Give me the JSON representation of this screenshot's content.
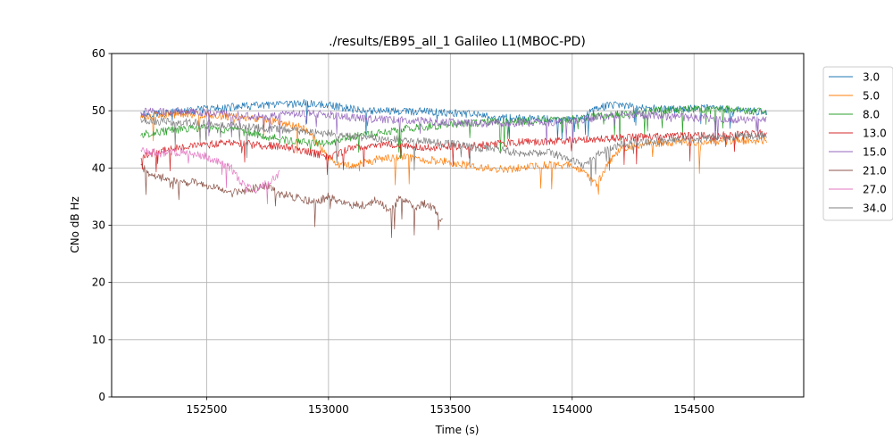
{
  "chart_data": {
    "type": "line",
    "title": "./results/EB95_all_1 Galileo L1(MBOC-PD)",
    "xlabel": "Time (s)",
    "ylabel": "CNo dB Hz",
    "xlim": [
      152110,
      154950
    ],
    "ylim": [
      0,
      60
    ],
    "xticks": [
      152500,
      153000,
      153500,
      154000,
      154500
    ],
    "yticks": [
      0,
      10,
      20,
      30,
      40,
      50,
      60
    ],
    "grid": true,
    "legend_position": "upper right outside",
    "series": [
      {
        "name": "3.0",
        "color": "#1f77b4",
        "x_range": [
          152230,
          154800
        ],
        "points": [
          [
            152230,
            49.4
          ],
          [
            152400,
            49.8
          ],
          [
            152500,
            50.3
          ],
          [
            152600,
            50.6
          ],
          [
            152700,
            50.9
          ],
          [
            152800,
            51.0
          ],
          [
            152900,
            51.3
          ],
          [
            153000,
            51.0
          ],
          [
            153100,
            50.3
          ],
          [
            153200,
            50.0
          ],
          [
            153300,
            49.9
          ],
          [
            153400,
            49.8
          ],
          [
            153500,
            49.6
          ],
          [
            153600,
            49.3
          ],
          [
            153700,
            48.8
          ],
          [
            153800,
            48.6
          ],
          [
            153900,
            48.5
          ],
          [
            154000,
            48.4
          ],
          [
            154050,
            48.9
          ],
          [
            154100,
            50.7
          ],
          [
            154200,
            51.0
          ],
          [
            154300,
            50.5
          ],
          [
            154400,
            50.2
          ],
          [
            154500,
            50.4
          ],
          [
            154600,
            50.5
          ],
          [
            154700,
            50.0
          ],
          [
            154800,
            49.8
          ]
        ]
      },
      {
        "name": "5.0",
        "color": "#ff7f0e",
        "x_range": [
          152230,
          154800
        ],
        "points": [
          [
            152230,
            49.0
          ],
          [
            152400,
            49.5
          ],
          [
            152500,
            49.3
          ],
          [
            152600,
            49.0
          ],
          [
            152700,
            48.5
          ],
          [
            152800,
            48.0
          ],
          [
            152900,
            47.0
          ],
          [
            153000,
            42.0
          ],
          [
            153050,
            40.5
          ],
          [
            153100,
            40.5
          ],
          [
            153200,
            41.5
          ],
          [
            153300,
            42.0
          ],
          [
            153400,
            41.5
          ],
          [
            153500,
            41.0
          ],
          [
            153600,
            40.2
          ],
          [
            153700,
            39.8
          ],
          [
            153800,
            40.0
          ],
          [
            153900,
            40.5
          ],
          [
            154000,
            40.5
          ],
          [
            154050,
            39.5
          ],
          [
            154100,
            37.0
          ],
          [
            154150,
            41.0
          ],
          [
            154200,
            43.5
          ],
          [
            154300,
            44.2
          ],
          [
            154400,
            44.5
          ],
          [
            154500,
            44.5
          ],
          [
            154600,
            44.7
          ],
          [
            154700,
            44.8
          ],
          [
            154800,
            44.8
          ]
        ]
      },
      {
        "name": "8.0",
        "color": "#2ca02c",
        "x_range": [
          152230,
          154800
        ],
        "points": [
          [
            152230,
            45.8
          ],
          [
            152300,
            46.3
          ],
          [
            152400,
            46.8
          ],
          [
            152500,
            47.0
          ],
          [
            152600,
            46.5
          ],
          [
            152700,
            46.0
          ],
          [
            152800,
            45.0
          ],
          [
            152900,
            44.5
          ],
          [
            153000,
            44.2
          ],
          [
            153100,
            45.5
          ],
          [
            153200,
            46.0
          ],
          [
            153300,
            46.8
          ],
          [
            153400,
            47.2
          ],
          [
            153500,
            47.6
          ],
          [
            153600,
            47.9
          ],
          [
            153700,
            48.1
          ],
          [
            153800,
            48.2
          ],
          [
            153900,
            48.3
          ],
          [
            154000,
            48.5
          ],
          [
            154100,
            49.0
          ],
          [
            154200,
            49.4
          ],
          [
            154300,
            49.8
          ],
          [
            154400,
            50.1
          ],
          [
            154500,
            50.3
          ],
          [
            154600,
            50.4
          ],
          [
            154700,
            50.0
          ],
          [
            154800,
            49.8
          ]
        ]
      },
      {
        "name": "13.0",
        "color": "#d62728",
        "x_range": [
          152230,
          154800
        ],
        "points": [
          [
            152230,
            41.8
          ],
          [
            152300,
            43.0
          ],
          [
            152400,
            43.8
          ],
          [
            152500,
            44.0
          ],
          [
            152600,
            44.5
          ],
          [
            152700,
            44.0
          ],
          [
            152800,
            43.8
          ],
          [
            152900,
            43.0
          ],
          [
            153000,
            42.0
          ],
          [
            153100,
            43.5
          ],
          [
            153200,
            44.2
          ],
          [
            153300,
            44.0
          ],
          [
            153400,
            43.6
          ],
          [
            153500,
            43.8
          ],
          [
            153600,
            44.0
          ],
          [
            153700,
            44.2
          ],
          [
            153800,
            44.5
          ],
          [
            153900,
            44.6
          ],
          [
            154000,
            44.8
          ],
          [
            154100,
            45.1
          ],
          [
            154200,
            45.3
          ],
          [
            154300,
            45.4
          ],
          [
            154400,
            45.5
          ],
          [
            154500,
            45.6
          ],
          [
            154600,
            45.6
          ],
          [
            154700,
            45.9
          ],
          [
            154800,
            46.1
          ]
        ]
      },
      {
        "name": "15.0",
        "color": "#9467bd",
        "x_range": [
          152230,
          154800
        ],
        "points": [
          [
            152230,
            49.8
          ],
          [
            152400,
            49.9
          ],
          [
            152500,
            49.7
          ],
          [
            152600,
            49.3
          ],
          [
            152700,
            49.0
          ],
          [
            152800,
            49.3
          ],
          [
            152900,
            49.5
          ],
          [
            153000,
            49.3
          ],
          [
            153100,
            48.8
          ],
          [
            153200,
            48.5
          ],
          [
            153300,
            48.3
          ],
          [
            153400,
            48.2
          ],
          [
            153500,
            48.0
          ],
          [
            153600,
            47.8
          ],
          [
            153700,
            47.8
          ],
          [
            153800,
            47.9
          ],
          [
            153900,
            48.0
          ],
          [
            154000,
            48.3
          ],
          [
            154100,
            48.8
          ],
          [
            154200,
            49.2
          ],
          [
            154300,
            49.2
          ],
          [
            154400,
            49.0
          ],
          [
            154500,
            48.8
          ],
          [
            154600,
            48.6
          ],
          [
            154700,
            48.4
          ],
          [
            154800,
            48.3
          ]
        ]
      },
      {
        "name": "21.0",
        "color": "#8c564b",
        "x_range": [
          152230,
          153470
        ],
        "points": [
          [
            152230,
            40.5
          ],
          [
            152260,
            39.0
          ],
          [
            152300,
            38.5
          ],
          [
            152350,
            38.0
          ],
          [
            152400,
            37.5
          ],
          [
            152450,
            37.5
          ],
          [
            152500,
            37.0
          ],
          [
            152550,
            36.5
          ],
          [
            152600,
            35.5
          ],
          [
            152650,
            36.0
          ],
          [
            152700,
            36.5
          ],
          [
            152750,
            36.8
          ],
          [
            152800,
            35.5
          ],
          [
            152850,
            35.0
          ],
          [
            152900,
            34.5
          ],
          [
            152950,
            34.0
          ],
          [
            153000,
            35.0
          ],
          [
            153050,
            34.0
          ],
          [
            153100,
            33.5
          ],
          [
            153150,
            33.5
          ],
          [
            153200,
            34.5
          ],
          [
            153250,
            32.5
          ],
          [
            153300,
            35.0
          ],
          [
            153350,
            33.0
          ],
          [
            153400,
            33.8
          ],
          [
            153440,
            32.5
          ],
          [
            153470,
            30.3
          ]
        ]
      },
      {
        "name": "27.0",
        "color": "#e377c2",
        "x_range": [
          152230,
          152800
        ],
        "points": [
          [
            152230,
            43.0
          ],
          [
            152300,
            42.5
          ],
          [
            152400,
            42.8
          ],
          [
            152500,
            42.0
          ],
          [
            152550,
            41.0
          ],
          [
            152600,
            40.0
          ],
          [
            152650,
            37.0
          ],
          [
            152700,
            36.0
          ],
          [
            152750,
            37.5
          ],
          [
            152800,
            39.0
          ]
        ]
      },
      {
        "name": "34.0",
        "color": "#7f7f7f",
        "x_range": [
          152230,
          154800
        ],
        "points": [
          [
            152230,
            48.5
          ],
          [
            152300,
            48.2
          ],
          [
            152400,
            48.0
          ],
          [
            152500,
            47.8
          ],
          [
            152600,
            47.5
          ],
          [
            152700,
            47.0
          ],
          [
            152800,
            46.8
          ],
          [
            152900,
            46.3
          ],
          [
            153000,
            46.0
          ],
          [
            153100,
            45.5
          ],
          [
            153200,
            45.2
          ],
          [
            153300,
            45.0
          ],
          [
            153400,
            44.6
          ],
          [
            153500,
            44.3
          ],
          [
            153600,
            43.6
          ],
          [
            153700,
            43.2
          ],
          [
            153800,
            42.5
          ],
          [
            153900,
            42.8
          ],
          [
            154000,
            41.5
          ],
          [
            154050,
            40.5
          ],
          [
            154100,
            42.5
          ],
          [
            154200,
            44.0
          ],
          [
            154300,
            44.6
          ],
          [
            154400,
            44.8
          ],
          [
            154500,
            45.0
          ],
          [
            154600,
            45.3
          ],
          [
            154700,
            45.5
          ],
          [
            154800,
            45.6
          ]
        ]
      }
    ]
  }
}
